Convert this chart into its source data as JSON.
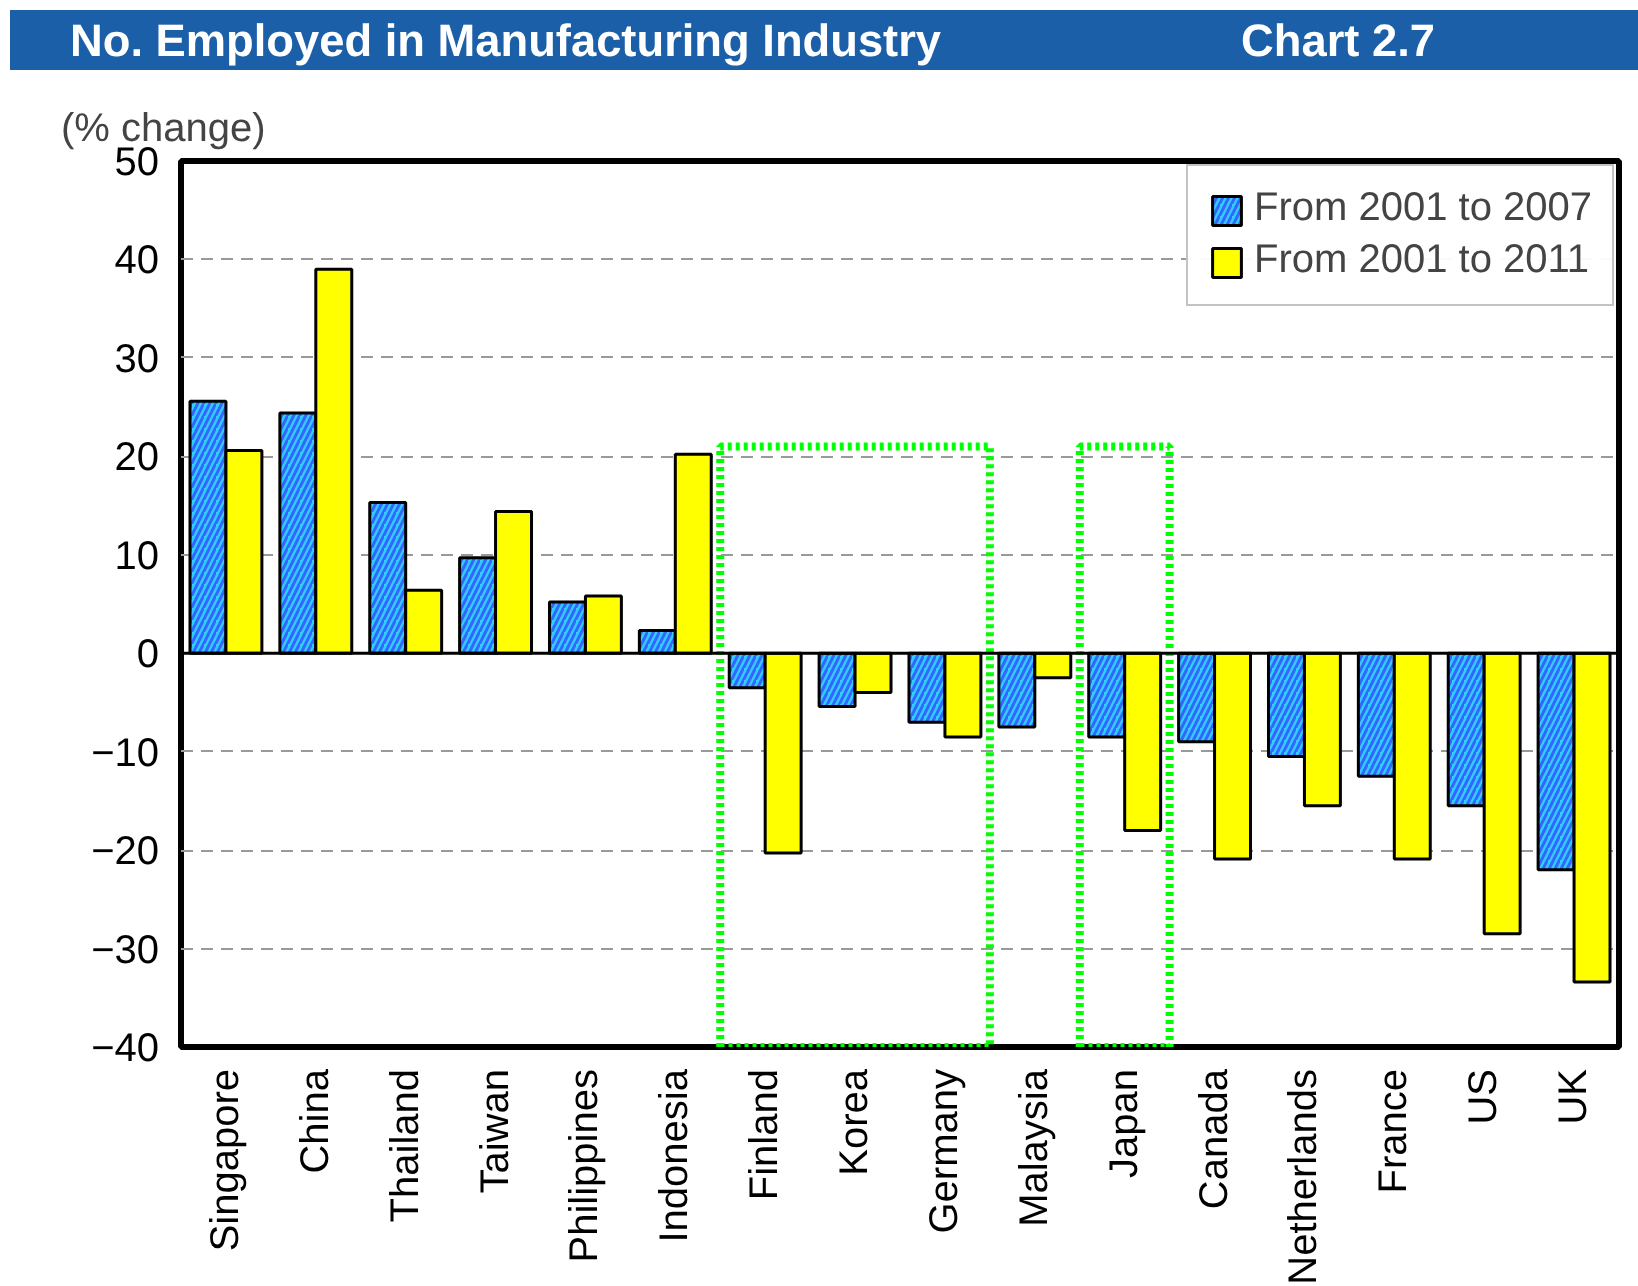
{
  "chart_data": {
    "type": "bar",
    "title": "No. Employed in Manufacturing Industry",
    "ylabel": "(% change)",
    "annotations": [
      "Chart 2.7"
    ],
    "categories": [
      "Singapore",
      "China",
      "Thailand",
      "Taiwan",
      "Philippines",
      "Indonesia",
      "Finland",
      "Korea",
      "Germany",
      "Malaysia",
      "Japan",
      "Canada",
      "Netherlands",
      "France",
      "US",
      "UK"
    ],
    "series": [
      {
        "name": "From 2001 to 2007",
        "color": "#33ccff",
        "values": [
          25.6,
          24.4,
          15.3,
          9.7,
          5.2,
          2.3,
          -3.5,
          -5.4,
          -7.0,
          -7.5,
          -8.5,
          -9.0,
          -10.5,
          -12.5,
          -15.5,
          -22.0
        ]
      },
      {
        "name": "From 2001 to 2011",
        "color": "#ffff00",
        "values": [
          20.6,
          39.0,
          6.4,
          14.4,
          5.8,
          20.2,
          -20.3,
          -4.0,
          -8.5,
          -2.5,
          -18.0,
          -20.9,
          -15.5,
          -20.9,
          -28.5,
          -33.4
        ]
      }
    ],
    "ylim": [
      -40,
      50
    ],
    "yticks": [
      -40,
      -30,
      -20,
      -10,
      0,
      10,
      20,
      30,
      40,
      50
    ],
    "grid": "y",
    "legend": "top right"
  }
}
